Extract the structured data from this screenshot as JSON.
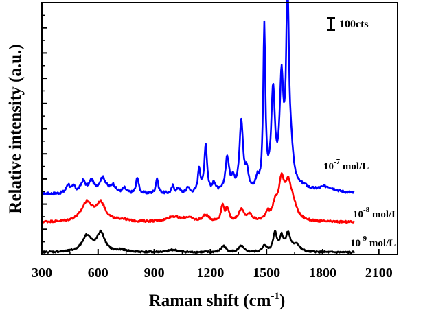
{
  "chart_data": {
    "type": "line",
    "title": "",
    "xlabel": "Raman shift (cm",
    "xlabel_sup": "-1",
    "xlabel_close": ")",
    "ylabel": "Relative intensity (a.u.)",
    "xlim": [
      300,
      2200
    ],
    "ylim": [
      0,
      1000
    ],
    "xticks": [
      "300",
      "600",
      "900",
      "1200",
      "1500",
      "1800",
      "2100"
    ],
    "yticks_labeled": false,
    "grid": false,
    "scale_bar": {
      "label": "100cts",
      "value": 100
    },
    "series": [
      {
        "name": "10-7 mol/L",
        "label_base": "10",
        "label_sup": "-7",
        "label_rest": " mol/L",
        "color": "#0000ff",
        "baseline": 240,
        "noise": 5,
        "peaks": [
          [
            440,
            35,
            12
          ],
          [
            470,
            25,
            10
          ],
          [
            520,
            45,
            16
          ],
          [
            565,
            45,
            16
          ],
          [
            625,
            60,
            22
          ],
          [
            680,
            30,
            16
          ],
          [
            740,
            20,
            12
          ],
          [
            810,
            65,
            8
          ],
          [
            915,
            60,
            8
          ],
          [
            1000,
            30,
            8
          ],
          [
            1030,
            20,
            10
          ],
          [
            1080,
            25,
            8
          ],
          [
            1140,
            95,
            8
          ],
          [
            1175,
            190,
            9
          ],
          [
            1220,
            35,
            10
          ],
          [
            1290,
            135,
            12
          ],
          [
            1320,
            45,
            10
          ],
          [
            1365,
            275,
            12
          ],
          [
            1395,
            70,
            10
          ],
          [
            1450,
            40,
            10
          ],
          [
            1488,
            640,
            7
          ],
          [
            1535,
            380,
            12
          ],
          [
            1580,
            410,
            12
          ],
          [
            1612,
            720,
            9
          ],
          [
            1630,
            120,
            18
          ],
          [
            1700,
            15,
            30
          ],
          [
            1820,
            25,
            60
          ]
        ]
      },
      {
        "name": "10-8 mol/L",
        "label_base": "10",
        "label_sup": "-8",
        "label_rest": " mol/L",
        "color": "#ff0000",
        "baseline": 128,
        "noise": 4,
        "peaks": [
          [
            540,
            75,
            35
          ],
          [
            615,
            70,
            30
          ],
          [
            730,
            8,
            30
          ],
          [
            1000,
            20,
            40
          ],
          [
            1080,
            15,
            30
          ],
          [
            1175,
            25,
            20
          ],
          [
            1265,
            60,
            10
          ],
          [
            1290,
            50,
            10
          ],
          [
            1365,
            45,
            18
          ],
          [
            1410,
            25,
            15
          ],
          [
            1505,
            30,
            12
          ],
          [
            1545,
            50,
            15
          ],
          [
            1580,
            150,
            20
          ],
          [
            1615,
            110,
            18
          ],
          [
            1640,
            60,
            25
          ]
        ]
      },
      {
        "name": "10-9 mol/L",
        "label_base": "10",
        "label_sup": "-9",
        "label_rest": " mol/L",
        "color": "#000000",
        "baseline": 8,
        "noise": 3.5,
        "peaks": [
          [
            540,
            65,
            30
          ],
          [
            615,
            75,
            25
          ],
          [
            730,
            8,
            30
          ],
          [
            1000,
            10,
            30
          ],
          [
            1270,
            25,
            15
          ],
          [
            1365,
            25,
            15
          ],
          [
            1490,
            25,
            12
          ],
          [
            1545,
            75,
            12
          ],
          [
            1580,
            55,
            12
          ],
          [
            1615,
            70,
            15
          ],
          [
            1660,
            30,
            20
          ]
        ]
      }
    ]
  }
}
